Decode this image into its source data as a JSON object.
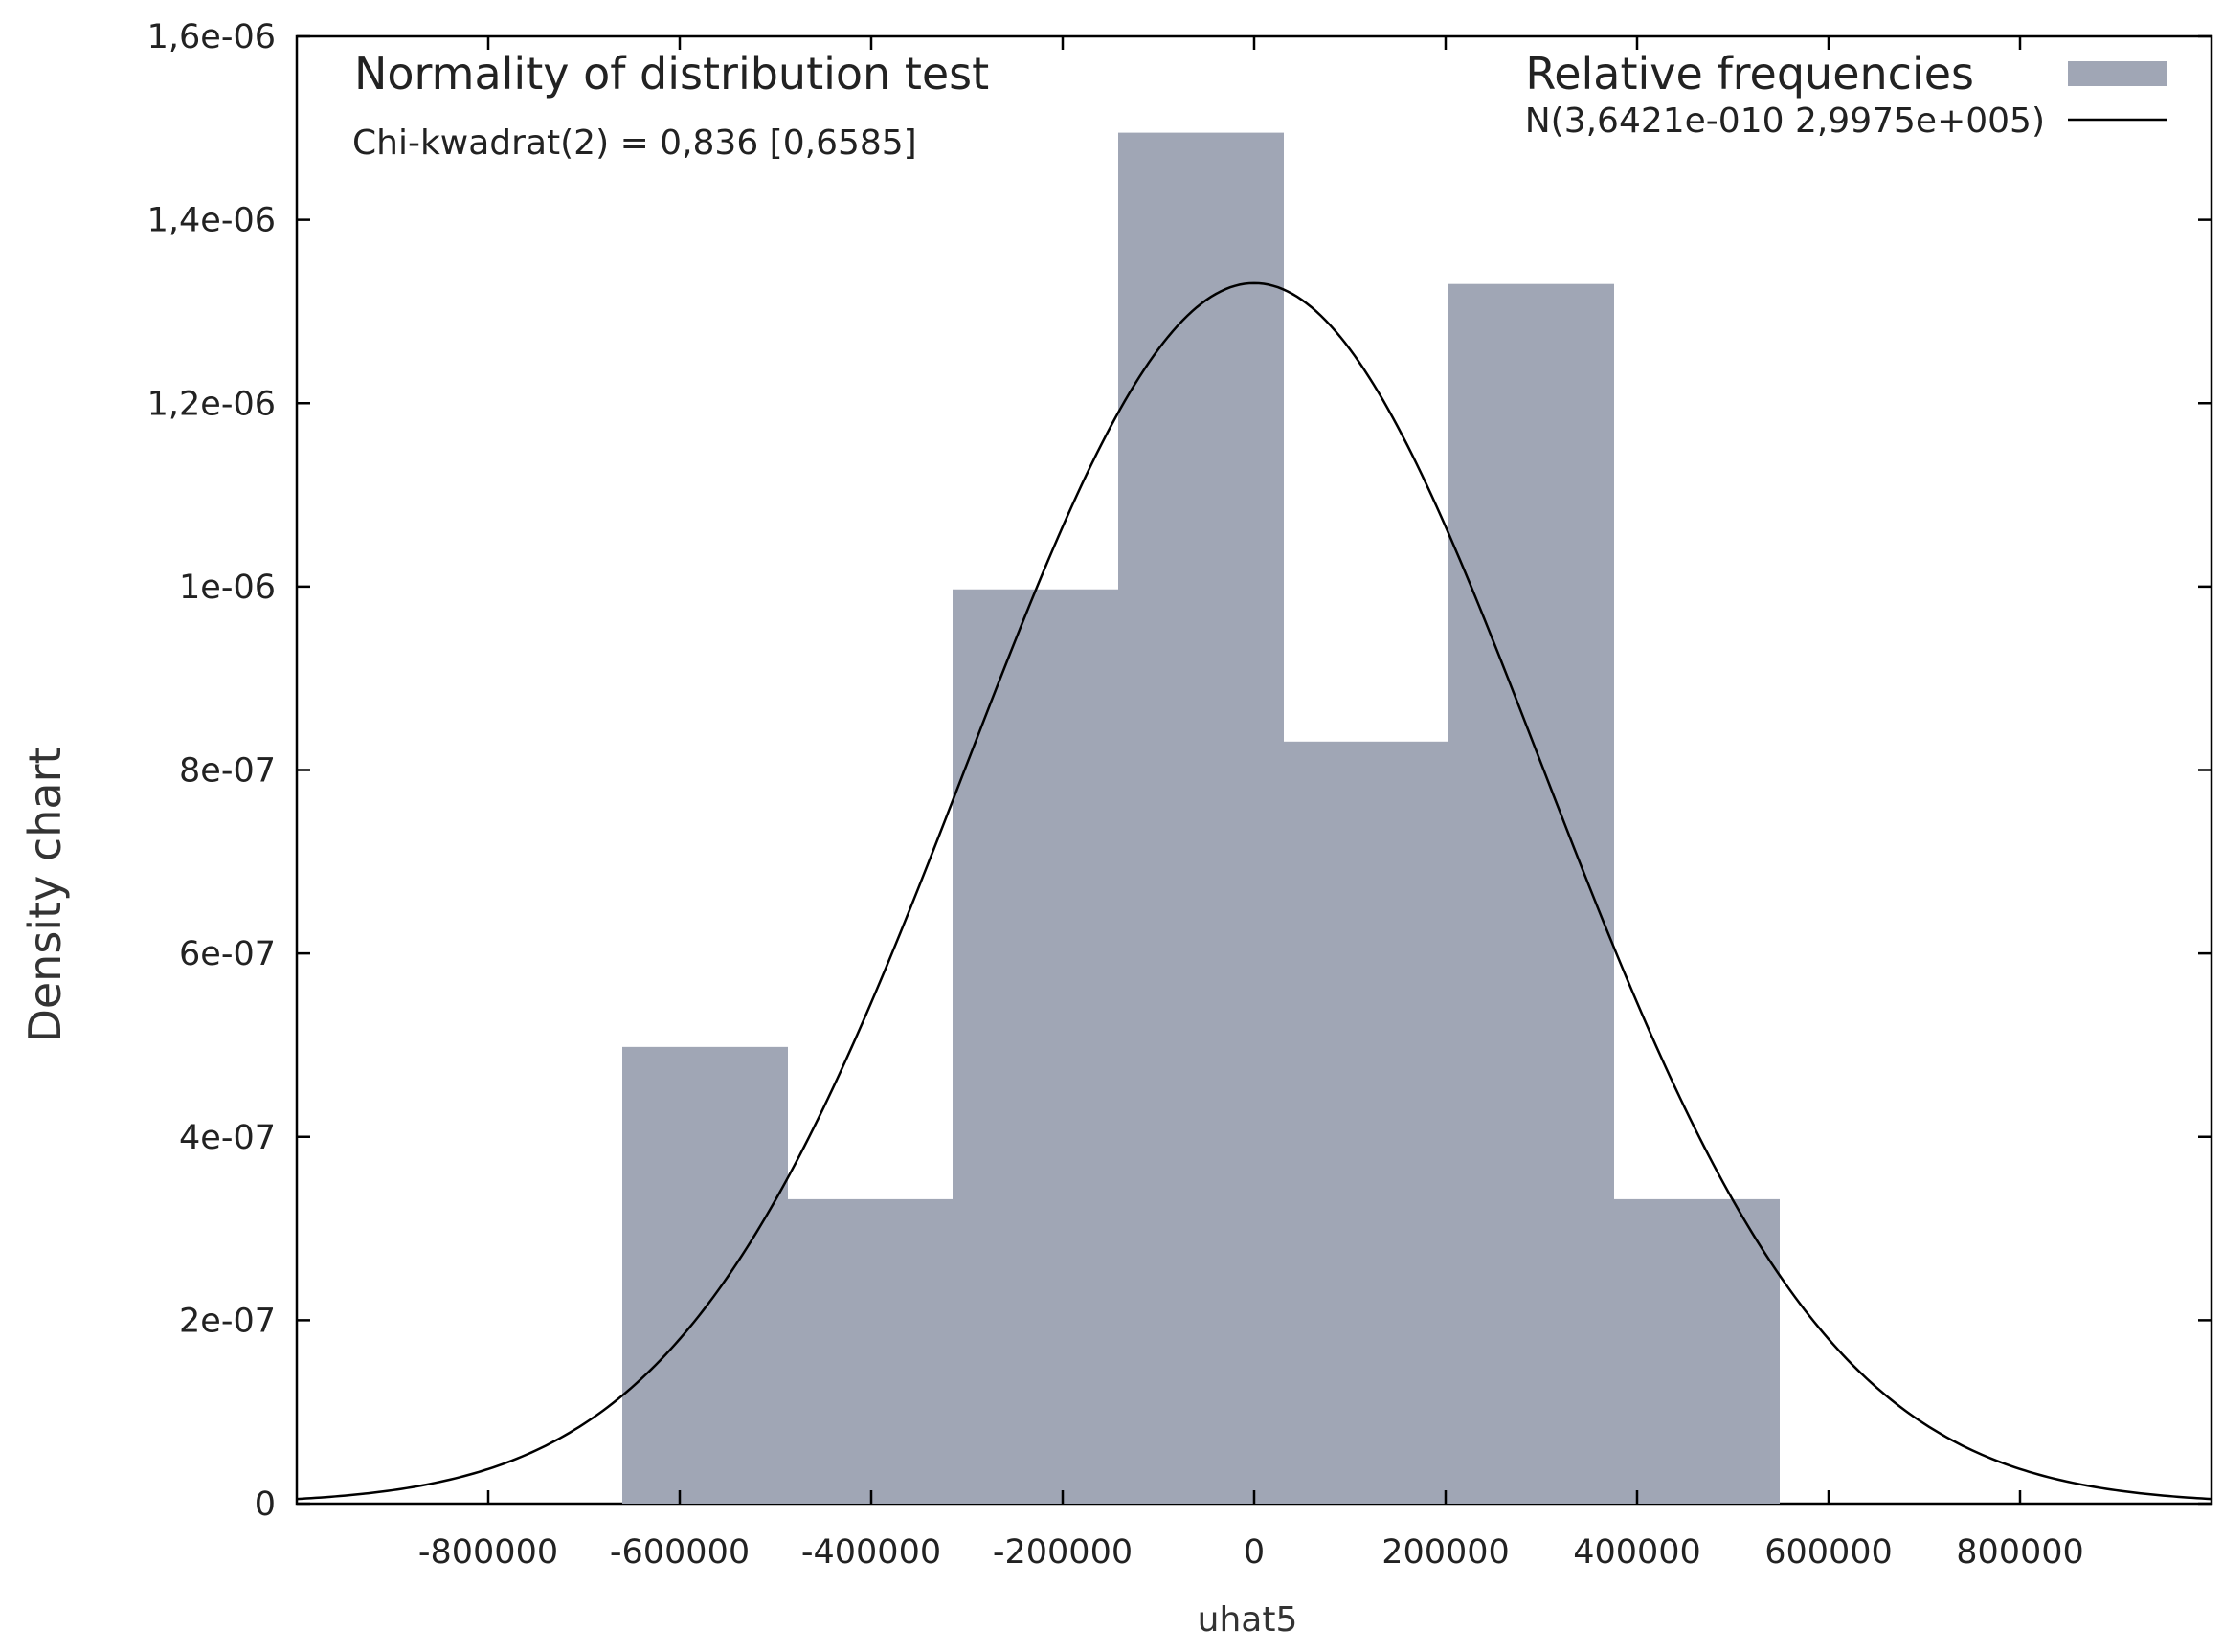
{
  "chart_data": {
    "type": "bar",
    "title": "Normality of distribution test",
    "annotation": "Chi-kwadrat(2) = 0,836 [0,6585]",
    "xlabel": "uhat5",
    "ylabel": "Density chart",
    "xlim": [
      -1000000,
      1000000
    ],
    "ylim": [
      0,
      1.6e-06
    ],
    "x_ticks": [
      -800000,
      -600000,
      -400000,
      -200000,
      0,
      200000,
      400000,
      600000,
      800000
    ],
    "x_tick_labels": [
      "-800000",
      "-600000",
      "-400000",
      "-200000",
      "0",
      "200000",
      "400000",
      "600000",
      "800000"
    ],
    "y_ticks": [
      0,
      2e-07,
      4e-07,
      6e-07,
      8e-07,
      1e-06,
      1.2e-06,
      1.4e-06,
      1.6e-06
    ],
    "y_tick_labels": [
      "0",
      "2e-07",
      "4e-07",
      "6e-07",
      "8e-07",
      "1e-06",
      "1,2e-06",
      "1,4e-06",
      "1,6e-06"
    ],
    "bins": [
      {
        "x0": -660000,
        "x1": -487000,
        "value": 4.98e-07
      },
      {
        "x0": -487000,
        "x1": -315000,
        "value": 3.32e-07
      },
      {
        "x0": -315000,
        "x1": -142000,
        "value": 9.97e-07
      },
      {
        "x0": -142000,
        "x1": 31000,
        "value": 1.495e-06
      },
      {
        "x0": 31000,
        "x1": 203000,
        "value": 8.31e-07
      },
      {
        "x0": 203000,
        "x1": 376000,
        "value": 1.33e-06
      },
      {
        "x0": 376000,
        "x1": 549000,
        "value": 3.32e-07
      }
    ],
    "series": [
      {
        "name": "Relative frequencies",
        "kind": "histogram",
        "color": "#a0a6b5"
      },
      {
        "name": "N(3,6421e-010 2,9975e+005)",
        "kind": "normal-curve",
        "mean": 3.6421e-10,
        "sd": 299750,
        "color": "#000000"
      }
    ],
    "legend": {
      "position": "top-right",
      "entries": [
        "Relative frequencies",
        "N(3,6421e-010 2,9975e+005)"
      ]
    }
  }
}
